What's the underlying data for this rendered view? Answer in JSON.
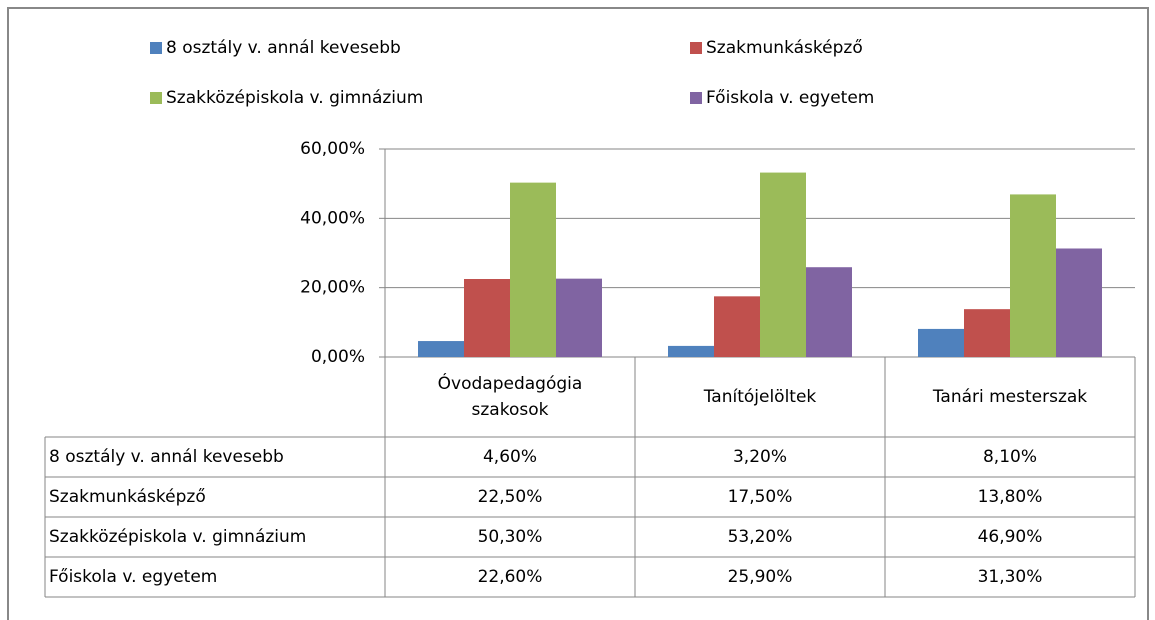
{
  "chart_data": {
    "type": "bar",
    "categories": [
      "Óvodapedagógia szakosok",
      "Tanítójelöltek",
      "Tanári mesterszak"
    ],
    "series": [
      {
        "name": "8 osztály v. annál kevesebb",
        "color": "#4f81bd",
        "values": [
          4.6,
          3.2,
          8.1
        ],
        "value_labels": [
          "4,60%",
          "3,20%",
          "8,10%"
        ]
      },
      {
        "name": "Szakmunkásképző",
        "color": "#c0504d",
        "values": [
          22.5,
          17.5,
          13.8
        ],
        "value_labels": [
          "22,50%",
          "17,50%",
          "13,80%"
        ]
      },
      {
        "name": "Szakközépiskola v. gimnázium",
        "color": "#9bbb59",
        "values": [
          50.3,
          53.2,
          46.9
        ],
        "value_labels": [
          "50,30%",
          "53,20%",
          "46,90%"
        ]
      },
      {
        "name": "Főiskola v. egyetem",
        "color": "#8064a2",
        "values": [
          22.6,
          25.9,
          31.3
        ],
        "value_labels": [
          "22,60%",
          "25,90%",
          "31,30%"
        ]
      }
    ],
    "ylim": [
      0,
      60
    ],
    "yticks": [
      {
        "value": 0,
        "label": "0,00%"
      },
      {
        "value": 20,
        "label": "20,00%"
      },
      {
        "value": 40,
        "label": "40,00%"
      },
      {
        "value": 60,
        "label": "60,00%"
      }
    ],
    "grid": true
  }
}
